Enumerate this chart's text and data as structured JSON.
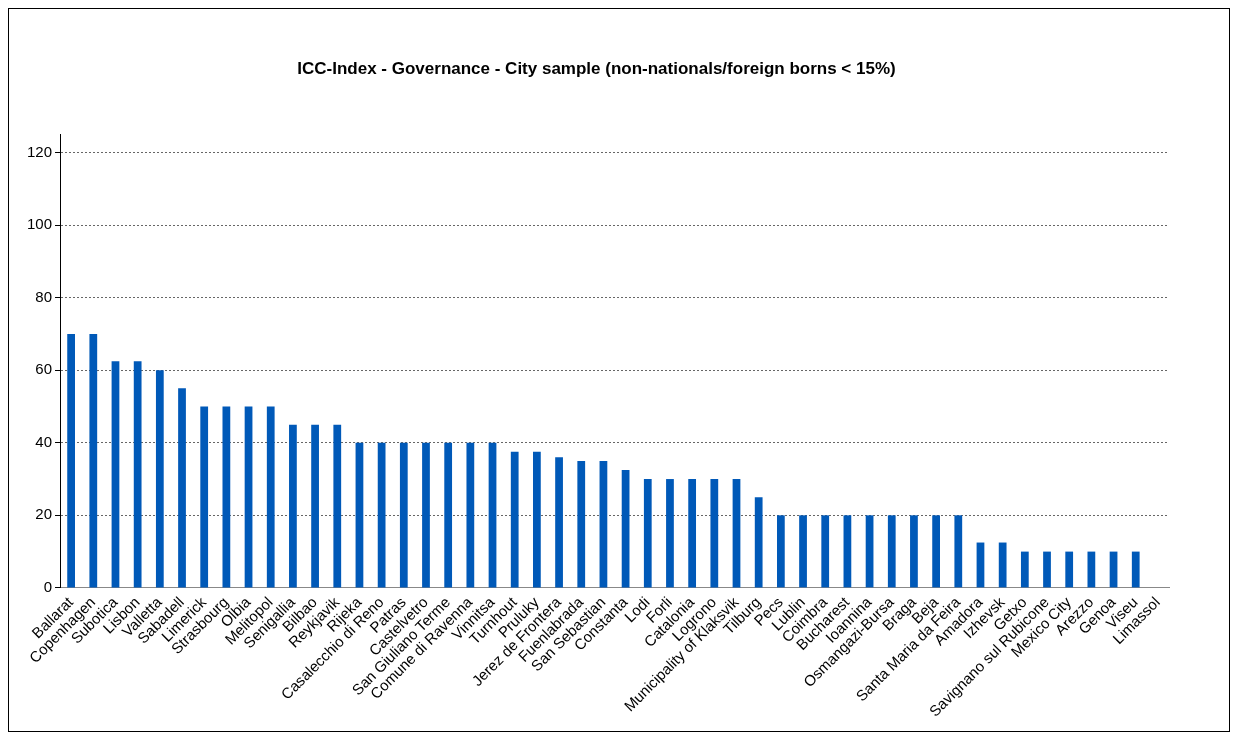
{
  "chart_data": {
    "type": "bar",
    "title": "ICC-Index - Governance - City sample (non-nationals/foreign borns < 15%)",
    "categories": [
      "Ballarat",
      "Copenhagen",
      "Subotica",
      "Lisbon",
      "Valletta",
      "Sabadell",
      "Limerick",
      "Strasbourg",
      "Olbia",
      "Melitopol",
      "Senigallia",
      "Bilbao",
      "Reykjavik",
      "Rijeka",
      "Casalecchio di Reno",
      "Patras",
      "Castelvetro",
      "San Giuliano Terme",
      "Comune di Ravenna",
      "Vinnitsa",
      "Turnhout",
      "Pruluky",
      "Jerez de Frontera",
      "Fuenlabrada",
      "San Sebastian",
      "Constanta",
      "Lodi",
      "Forli",
      "Catalonia",
      "Logrono",
      "Municipality of Klaksvik",
      "Tilburg",
      "Pecs",
      "Lublin",
      "Coimbra",
      "Bucharest",
      "Ioannina",
      "Osmangazi-Bursa",
      "Braga",
      "Beja",
      "Santa Maria da Feira",
      "Amadora",
      "Izhevsk",
      "Getxo",
      "Savignano sul Rubicone",
      "Mexico City",
      "Arezzo",
      "Genoa",
      "Viseu",
      "Limassol"
    ],
    "values": [
      70,
      70,
      62.5,
      62.5,
      60,
      55,
      50,
      50,
      50,
      50,
      45,
      45,
      45,
      40,
      40,
      40,
      40,
      40,
      40,
      40,
      37.5,
      37.5,
      36,
      35,
      35,
      32.5,
      30,
      30,
      30,
      30,
      30,
      25,
      20,
      20,
      20,
      20,
      20,
      20,
      20,
      20,
      20,
      12.5,
      12.5,
      10,
      10,
      10,
      10,
      10,
      10,
      0
    ],
    "color": "#0059b8",
    "ylim": [
      0,
      125
    ],
    "yticks": [
      0,
      20,
      40,
      60,
      80,
      100,
      120
    ],
    "grid": "y"
  }
}
